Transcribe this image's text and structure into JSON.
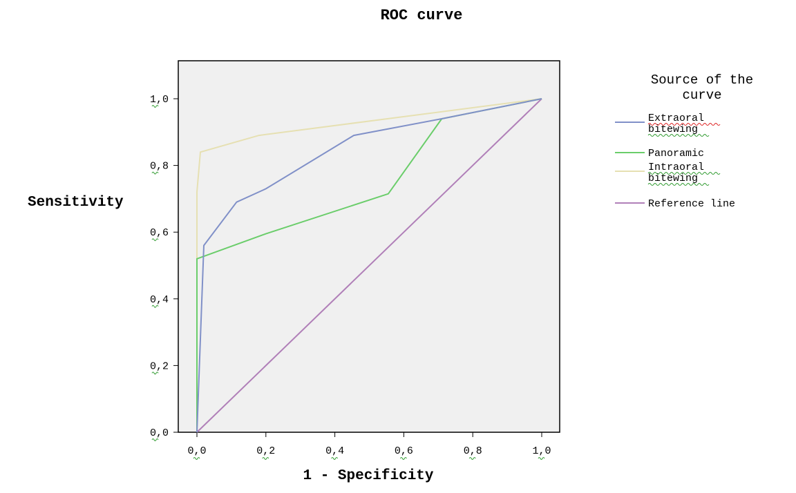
{
  "chart_data": {
    "type": "line",
    "title": "ROC curve",
    "xlabel": "1 - Specificity",
    "ylabel": "Sensitivity",
    "xlim": [
      0,
      1
    ],
    "ylim": [
      0,
      1
    ],
    "x_ticks": [
      "0,0",
      "0,2",
      "0,4",
      "0,6",
      "0,8",
      "1,0"
    ],
    "y_ticks": [
      "0,0",
      "0,2",
      "0,4",
      "0,6",
      "0,8",
      "1,0"
    ],
    "grid": false,
    "legend": {
      "title": "Source of the curve",
      "position": "right",
      "entries": [
        "Extraoral bitewing",
        "Panoramic",
        "Intraoral bitewing",
        "Reference line"
      ]
    },
    "series": [
      {
        "name": "Extraoral bitewing",
        "color": "#8090c8",
        "points": [
          [
            0,
            0
          ],
          [
            0.02,
            0.56
          ],
          [
            0.115,
            0.69
          ],
          [
            0.2,
            0.73
          ],
          [
            0.455,
            0.89
          ],
          [
            0.71,
            0.94
          ],
          [
            1,
            1
          ]
        ]
      },
      {
        "name": "Panoramic",
        "color": "#6acd6a",
        "points": [
          [
            0,
            0
          ],
          [
            0,
            0.52
          ],
          [
            0.2,
            0.595
          ],
          [
            0.555,
            0.715
          ],
          [
            0.71,
            0.94
          ],
          [
            1,
            1
          ]
        ]
      },
      {
        "name": "Intraoral bitewing",
        "color": "#e6e0b2",
        "points": [
          [
            0,
            0
          ],
          [
            0,
            0.72
          ],
          [
            0.01,
            0.84
          ],
          [
            0.18,
            0.89
          ],
          [
            1,
            1
          ]
        ]
      },
      {
        "name": "Reference line",
        "color": "#b07fb8",
        "points": [
          [
            0,
            0
          ],
          [
            1,
            1
          ]
        ]
      }
    ]
  }
}
